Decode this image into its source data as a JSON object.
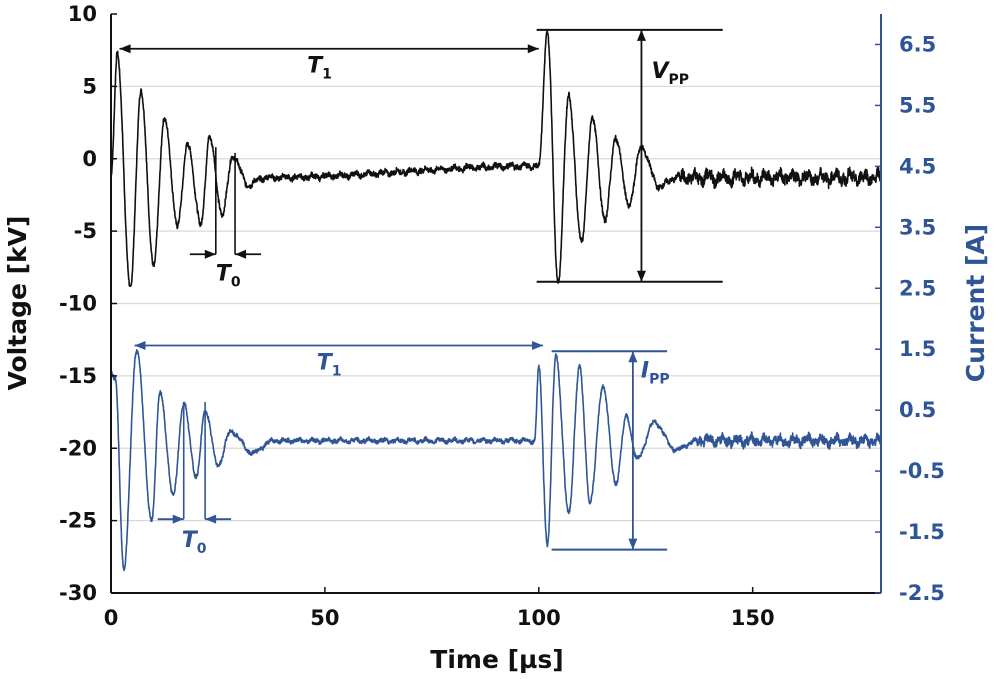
{
  "chart_data": {
    "type": "line",
    "xlabel": "Time [µs]",
    "ylabel_left": "Voltage [kV]",
    "ylabel_right": "Current [A]",
    "xlim": [
      0,
      180
    ],
    "ylim_left": [
      -30,
      10
    ],
    "ylim_right": [
      -2.5,
      7.0
    ],
    "x_ticks": [
      "0",
      "50",
      "100",
      "150"
    ],
    "x_tick_values": [
      0,
      50,
      100,
      150
    ],
    "y_left_ticks": [
      "10",
      "5",
      "0",
      "-5",
      "-10",
      "-15",
      "-20",
      "-25",
      "-30"
    ],
    "y_left_tick_values": [
      10,
      5,
      0,
      -5,
      -10,
      -15,
      -20,
      -25,
      -30
    ],
    "y_right_ticks": [
      "6.5",
      "5.5",
      "4.5",
      "3.5",
      "2.5",
      "1.5",
      "0.5",
      "-0.5",
      "-1.5",
      "-2.5"
    ],
    "y_right_tick_values": [
      6.5,
      5.5,
      4.5,
      3.5,
      2.5,
      1.5,
      0.5,
      -0.5,
      -1.5,
      -2.5
    ],
    "grid": true,
    "colors": {
      "voltage": "#111111",
      "current": "#2f5597"
    },
    "series": [
      {
        "name": "Voltage",
        "axis": "left",
        "color": "#111111",
        "baseline": -1.3,
        "noise": 0.55,
        "pulse_times": [
          0.3,
          100
        ],
        "x": [
          0,
          1.5,
          4.5,
          7,
          10,
          12.5,
          15.5,
          18,
          21,
          23,
          26,
          28.5,
          32,
          36,
          100,
          102,
          104.5,
          107,
          110,
          112.5,
          115.5,
          118,
          121,
          124,
          128,
          133
        ],
        "values": [
          -1.2,
          7.2,
          -9.0,
          4.6,
          -7.4,
          2.9,
          -4.5,
          1.0,
          -4.6,
          1.5,
          -3.8,
          0.2,
          -1.8,
          -1.3,
          -0.5,
          8.8,
          -8.5,
          4.3,
          -5.8,
          2.8,
          -4.2,
          1.5,
          -3.2,
          0.8,
          -1.9,
          -1.2
        ]
      },
      {
        "name": "Current",
        "axis": "right",
        "color": "#2f5597",
        "baseline": 0.0,
        "noise": 0.1,
        "pulse_times": [
          0,
          99
        ],
        "x": [
          0,
          1,
          3,
          6,
          9.5,
          11.5,
          14.5,
          17,
          20,
          22,
          25,
          28,
          33,
          38,
          99,
          100,
          102,
          104,
          107,
          109.5,
          112,
          115,
          118,
          120.5,
          123,
          127,
          132,
          137
        ],
        "values": [
          1.1,
          1.0,
          -2.1,
          1.5,
          -1.3,
          0.8,
          -0.9,
          0.6,
          -0.6,
          0.5,
          -0.4,
          0.15,
          -0.2,
          0.0,
          0.0,
          1.2,
          -1.7,
          1.4,
          -1.2,
          1.2,
          -1.0,
          0.9,
          -0.7,
          0.4,
          -0.3,
          0.3,
          -0.15,
          0.0
        ]
      }
    ],
    "annotations": {
      "voltage_T1": {
        "label": "T",
        "sub": "1",
        "from": 2,
        "to": 100,
        "at": 7.6
      },
      "voltage_T0": {
        "label": "T",
        "sub": "0",
        "from": 24.5,
        "to": 29,
        "at": -6.6
      },
      "voltage_Vpp": {
        "label": "V",
        "sub": "PP",
        "top": 8.9,
        "bottom": -8.5,
        "x": 124
      },
      "current_T1": {
        "label": "T",
        "sub": "1",
        "from": 5.5,
        "to": 101,
        "at": -12.9
      },
      "current_T0": {
        "label": "T",
        "sub": "0",
        "from": 17,
        "to": 22,
        "at": -24.9
      },
      "current_Ipp": {
        "label": "I",
        "sub": "PP",
        "top": -13.3,
        "bottom": -27.0,
        "x": 122
      }
    }
  }
}
